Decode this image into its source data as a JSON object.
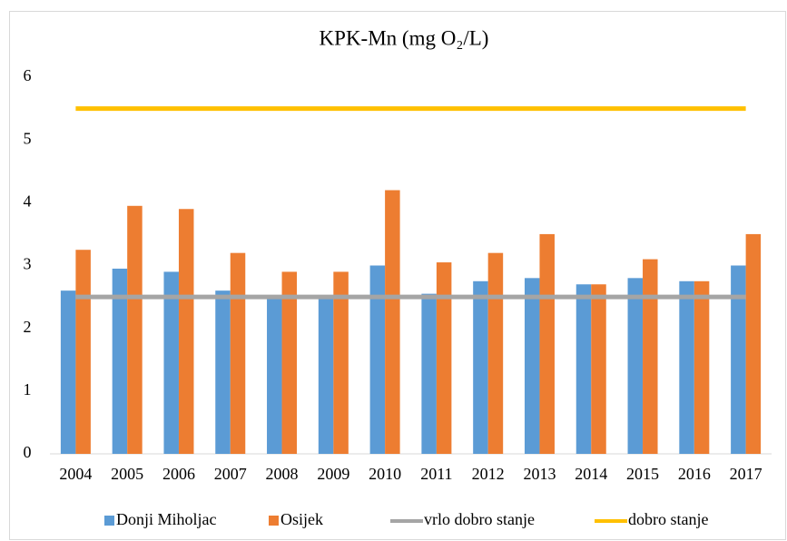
{
  "chart_data": {
    "type": "bar",
    "title": "KPK-Mn (mg O₂/L)",
    "categories": [
      "2004",
      "2005",
      "2006",
      "2007",
      "2008",
      "2009",
      "2010",
      "2011",
      "2012",
      "2013",
      "2014",
      "2015",
      "2016",
      "2017"
    ],
    "series": [
      {
        "name": "Donji Miholjac",
        "type": "bar",
        "color": "#5b9bd5",
        "values": [
          2.6,
          2.95,
          2.9,
          2.6,
          2.5,
          2.5,
          3.0,
          2.55,
          2.75,
          2.8,
          2.7,
          2.8,
          2.75,
          3.0
        ]
      },
      {
        "name": "Osijek",
        "type": "bar",
        "color": "#ed7d31",
        "values": [
          3.25,
          3.95,
          3.9,
          3.2,
          2.9,
          2.9,
          4.2,
          3.05,
          3.2,
          3.5,
          2.7,
          3.1,
          2.75,
          3.5
        ]
      },
      {
        "name": "vrlo dobro stanje",
        "type": "line",
        "color": "#a5a5a5",
        "values": [
          2.5,
          2.5,
          2.5,
          2.5,
          2.5,
          2.5,
          2.5,
          2.5,
          2.5,
          2.5,
          2.5,
          2.5,
          2.5,
          2.5
        ]
      },
      {
        "name": "dobro stanje",
        "type": "line",
        "color": "#ffc000",
        "values": [
          5.5,
          5.5,
          5.5,
          5.5,
          5.5,
          5.5,
          5.5,
          5.5,
          5.5,
          5.5,
          5.5,
          5.5,
          5.5,
          5.5
        ]
      }
    ],
    "ylim": [
      0,
      6
    ],
    "yticks": [
      0,
      1,
      2,
      3,
      4,
      5,
      6
    ],
    "grid": false,
    "legend": "bottom"
  }
}
